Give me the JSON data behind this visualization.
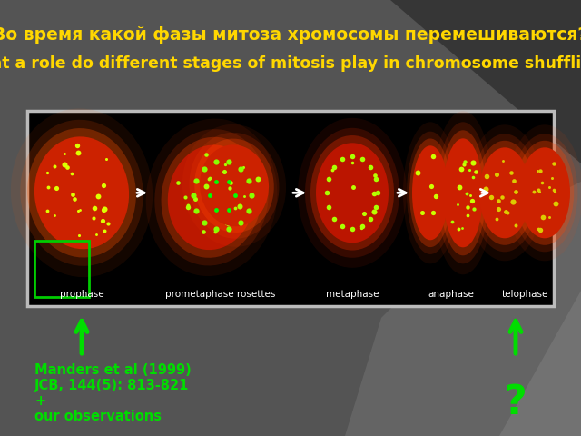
{
  "bg_color": "#505050",
  "title_russian": "Во время какой фазы митоза хромосомы перемешиваются?",
  "title_english": "What a role do different stages of mitosis play in chromosome shuffling ?",
  "title_russian_color": "#FFD700",
  "title_english_color": "#FFD700",
  "title_russian_fontsize": 13.5,
  "title_english_fontsize": 12.5,
  "arrow_color": "#00DD00",
  "ref_text_line1": "Manders et al (1999)",
  "ref_text_line2": "JCB, 144(5): 813-821",
  "ref_text_line3": "+",
  "ref_text_line4": "our observations",
  "ref_color": "#00DD00",
  "ref_fontsize": 10.5,
  "question_mark": "?",
  "question_color": "#00DD00",
  "question_fontsize": 32,
  "phase_labels": [
    "prophase",
    "prometaphase rosettes",
    "metaphase",
    "anaphase",
    "telophase"
  ],
  "phase_label_color": "white",
  "phase_label_fontsize": 7.5
}
